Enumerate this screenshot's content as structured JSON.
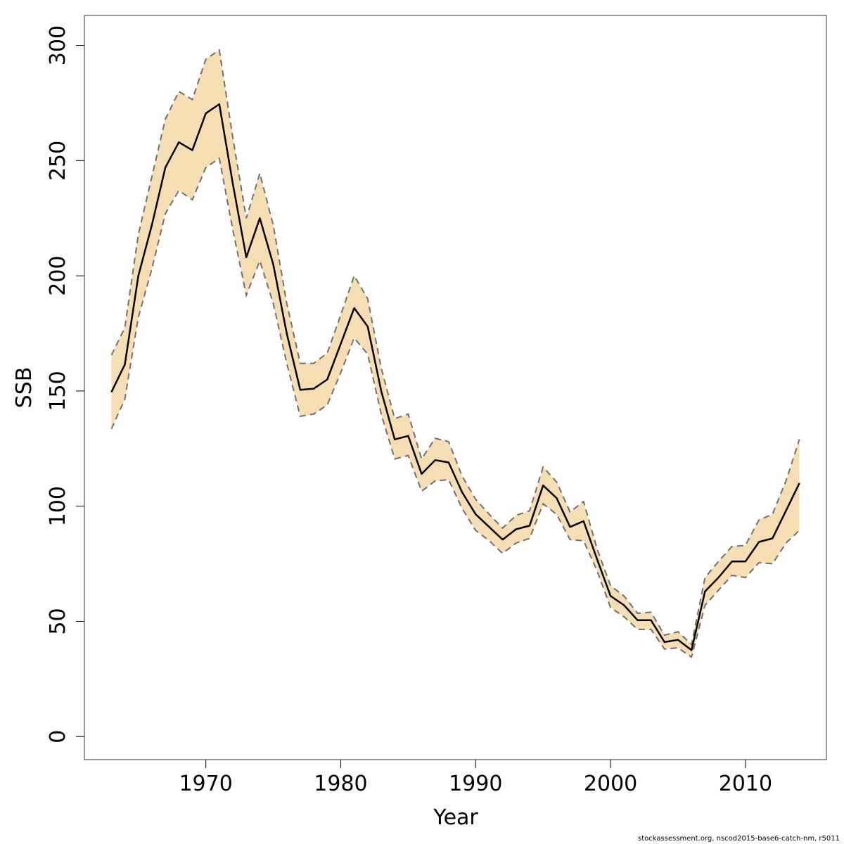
{
  "chart_data": {
    "type": "line",
    "xlabel": "Year",
    "ylabel": "SSB",
    "xlim": [
      1961,
      2016
    ],
    "ylim": [
      -10,
      313
    ],
    "xticks": [
      1970,
      1980,
      1990,
      2000,
      2010
    ],
    "yticks": [
      0,
      50,
      100,
      150,
      200,
      250,
      300
    ],
    "grid": false,
    "legend": "none",
    "colors": {
      "band": "#f5deb3",
      "bounds": "#707070",
      "line": "#000000"
    },
    "x": [
      1963,
      1964,
      1965,
      1966,
      1967,
      1968,
      1969,
      1970,
      1971,
      1972,
      1973,
      1974,
      1975,
      1976,
      1977,
      1978,
      1979,
      1980,
      1981,
      1982,
      1983,
      1984,
      1985,
      1986,
      1987,
      1988,
      1989,
      1990,
      1991,
      1992,
      1993,
      1994,
      1995,
      1996,
      1997,
      1998,
      1999,
      2000,
      2001,
      2002,
      2003,
      2004,
      2005,
      2006,
      2007,
      2008,
      2009,
      2010,
      2011,
      2012,
      2013,
      2014
    ],
    "series": [
      {
        "role": "estimate",
        "values": [
          149.5,
          161.5,
          200,
          222,
          247,
          258,
          254.5,
          270.5,
          274.5,
          240,
          208,
          225,
          205,
          175,
          150.5,
          151,
          155,
          170.5,
          186,
          178,
          150,
          129,
          130.5,
          114,
          120,
          119,
          106,
          96.5,
          91,
          85.5,
          90,
          91.5,
          109,
          103.5,
          91,
          93.5,
          77,
          61,
          57,
          50.5,
          50.5,
          41,
          42,
          37.5,
          63,
          69,
          76,
          76,
          84.5,
          86,
          98,
          110
        ]
      },
      {
        "role": "upper",
        "values": [
          165.5,
          177.5,
          218,
          243,
          268,
          280,
          276.5,
          294,
          298,
          260,
          225,
          244.5,
          222,
          188,
          162,
          162,
          166.5,
          183,
          200,
          190,
          160,
          138,
          140,
          120.5,
          129.5,
          128,
          113,
          103,
          96.5,
          90.5,
          96,
          98,
          117,
          110.5,
          97.5,
          102,
          81.5,
          65.5,
          61,
          53.5,
          54,
          44,
          45.5,
          40,
          69,
          76,
          82.5,
          83,
          94,
          96.5,
          111,
          129
        ]
      },
      {
        "role": "lower",
        "values": [
          133.5,
          146.5,
          182,
          203,
          227,
          237,
          233,
          247,
          251,
          220,
          191.5,
          206.5,
          188,
          162,
          139,
          140,
          144,
          158,
          173,
          166,
          140,
          120.5,
          122,
          106.5,
          111,
          111.5,
          99,
          89.5,
          85,
          79.5,
          84,
          86,
          101,
          96.5,
          85.5,
          85,
          72,
          56,
          52,
          46.5,
          46.5,
          38,
          38.5,
          34.5,
          57,
          63.5,
          70,
          69,
          75.5,
          75,
          84,
          89.5
        ]
      }
    ]
  },
  "footer": "stockassessment.org, nscod2015-base6-catch-nm, r5011"
}
